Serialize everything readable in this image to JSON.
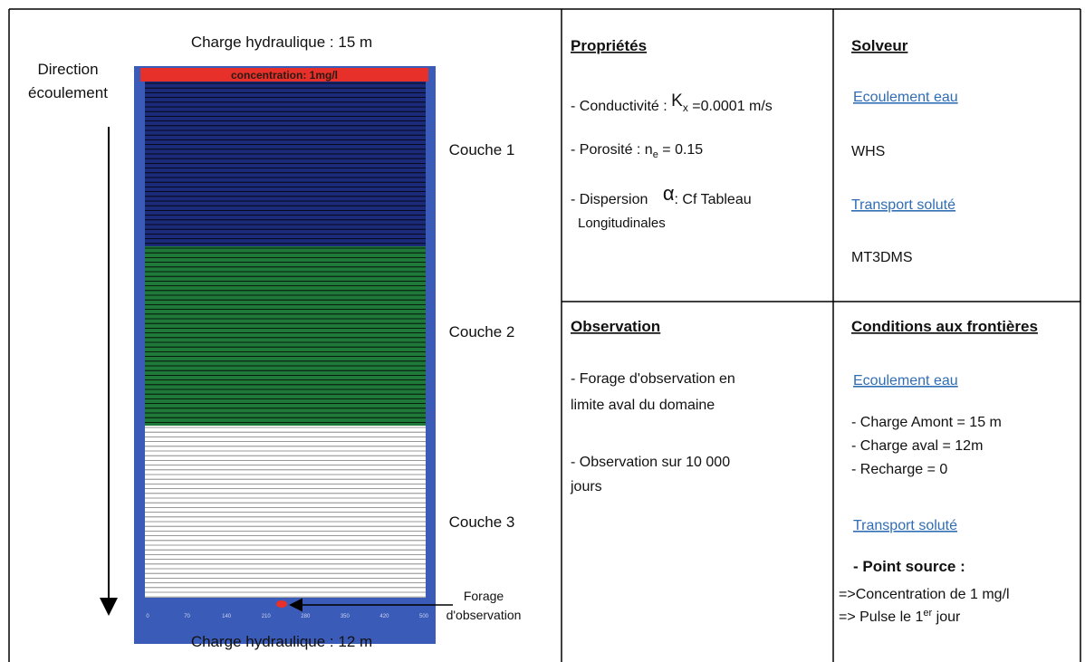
{
  "model": {
    "top_head": "Charge hydraulique : 15 m",
    "bottom_head": "Charge hydraulique : 12 m",
    "direction": [
      "Direction",
      "écoulement"
    ],
    "source_band": "concentration: 1mg/l",
    "layers": [
      "Couche 1",
      "Couche 2",
      "Couche 3"
    ],
    "well": [
      "Forage",
      "d'observation"
    ],
    "axis_labels": [
      "0",
      "70",
      "140",
      "210",
      "280",
      "350",
      "420",
      "500"
    ]
  },
  "properties": {
    "title": "Propriétés",
    "conductivity": [
      "- Conductivité :",
      "K",
      "x",
      " =0.0001 m/s"
    ],
    "porosity": [
      "- Porosité : n",
      "e",
      " = 0.15"
    ],
    "dispersion": [
      "- Dispersion",
      "α",
      ": Cf Tableau"
    ],
    "dispersion_2": "Longitudinales"
  },
  "solver": {
    "title": "Solveur",
    "flow": "Ecoulement  eau",
    "flow_value": "WHS",
    "transport": "Transport soluté",
    "transport_value": "MT3DMS"
  },
  "observation": {
    "title": "Observation",
    "lines": [
      "- Forage d'observation en",
      "limite aval du domaine",
      "- Observation sur 10 000",
      "jours"
    ]
  },
  "boundaries": {
    "title": "Conditions aux frontières",
    "flow": "Ecoulement  eau",
    "flow_lines": [
      "- Charge Amont = 15 m",
      "- Charge aval = 12m",
      "- Recharge = 0"
    ],
    "transport": "Transport soluté",
    "source_title": "- Point source :",
    "source_1": "=>Concentration de 1 mg/l",
    "source_2": [
      "=> Pulse le 1",
      "er",
      " jour"
    ]
  }
}
